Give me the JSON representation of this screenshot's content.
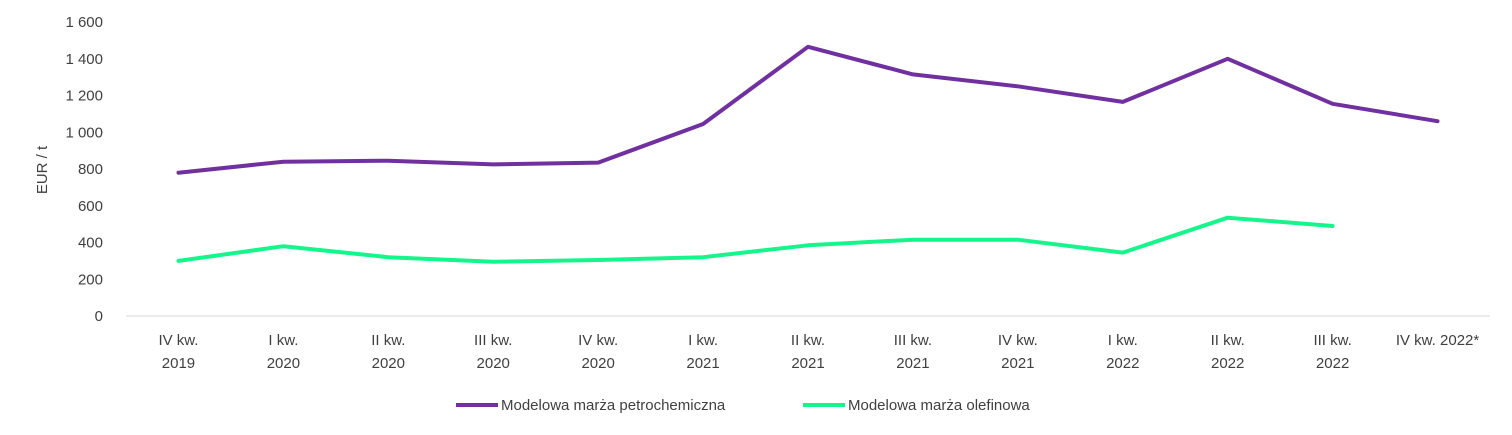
{
  "chart_data": {
    "type": "line",
    "title": "",
    "xlabel": "",
    "ylabel": "EUR / t",
    "ylim": [
      0,
      1600
    ],
    "yticks": [
      0,
      200,
      400,
      600,
      800,
      1000,
      1200,
      1400,
      1600
    ],
    "ytick_labels": [
      "0",
      "200",
      "400",
      "600",
      "800",
      "1 000",
      "1 200",
      "1 400",
      "1 600"
    ],
    "categories": [
      [
        "IV kw.",
        "2019"
      ],
      [
        "I kw.",
        "2020"
      ],
      [
        "II kw.",
        "2020"
      ],
      [
        "III kw.",
        "2020"
      ],
      [
        "IV kw.",
        "2020"
      ],
      [
        "I kw.",
        "2021"
      ],
      [
        "II kw.",
        "2021"
      ],
      [
        "III kw.",
        "2021"
      ],
      [
        "IV kw.",
        "2021"
      ],
      [
        "I kw.",
        "2022"
      ],
      [
        "II kw.",
        "2022"
      ],
      [
        "III kw.",
        "2022"
      ],
      [
        "IV kw. 2022*"
      ]
    ],
    "grid": false,
    "legend_position": "bottom",
    "series": [
      {
        "name": "Modelowa marża petrochemiczna",
        "color": "#7030A0",
        "values": [
          780,
          840,
          845,
          825,
          835,
          1045,
          1465,
          1315,
          1250,
          1165,
          1400,
          1155,
          1060
        ]
      },
      {
        "name": "Modelowa marża olefinowa",
        "color": "#14F58C",
        "values": [
          300,
          380,
          320,
          295,
          305,
          320,
          385,
          415,
          415,
          345,
          535,
          490,
          null
        ]
      }
    ]
  }
}
